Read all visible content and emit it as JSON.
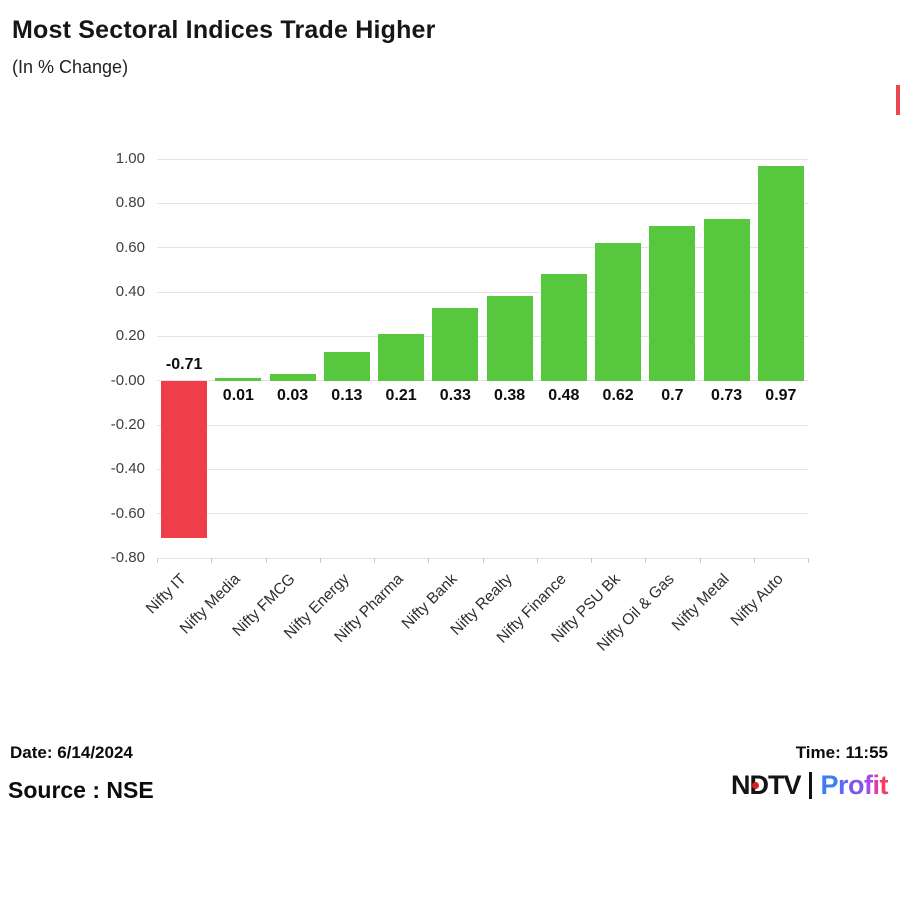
{
  "header": {
    "title": "Most Sectoral Indices Trade Higher",
    "subtitle": "(In % Change)"
  },
  "chart_data": {
    "type": "bar",
    "title": "Most Sectoral Indices Trade Higher",
    "subtitle": "(In % Change)",
    "categories": [
      "Nifty IT",
      "Nifty Media",
      "Nifty FMCG",
      "Nifty Energy",
      "Nifty Pharma",
      "Nifty Bank",
      "Nifty Realty",
      "Nifty Finance",
      "Nifty PSU Bk",
      "Nifty Oil & Gas",
      "Nifty Metal",
      "Nifty Auto"
    ],
    "values": [
      -0.71,
      0.01,
      0.03,
      0.13,
      0.21,
      0.33,
      0.38,
      0.48,
      0.62,
      0.7,
      0.73,
      0.97
    ],
    "value_labels": [
      "-0.71",
      "0.01",
      "0.03",
      "0.13",
      "0.21",
      "0.33",
      "0.38",
      "0.48",
      "0.62",
      "0.7",
      "0.73",
      "0.97"
    ],
    "xlabel": "",
    "ylabel": "",
    "ylim": [
      -0.8,
      1.0
    ],
    "y_tick_labels": [
      "1.00",
      "0.80",
      "0.60",
      "0.40",
      "0.20",
      "-0.00",
      "-0.20",
      "-0.40",
      "-0.60",
      "-0.80"
    ],
    "y_tick_values": [
      1.0,
      0.8,
      0.6,
      0.4,
      0.2,
      0.0,
      -0.2,
      -0.4,
      -0.6,
      -0.8
    ],
    "grid": true,
    "legend": "none",
    "positive_color": "#57c83e",
    "negative_color": "#ee3e4a"
  },
  "footer": {
    "date_label": "Date: 6/14/2024",
    "time_label": "Time: 11:55",
    "source_label": "Source : NSE",
    "brand": {
      "ndtv": "NDTV",
      "profit": "Profit",
      "profit_letter_colors": [
        "#3f7df2",
        "#5b6bf4",
        "#7e57f2",
        "#a94ae8",
        "#e23ba8",
        "#f43f63"
      ],
      "ndtv_dot_color": "#d91f1f"
    }
  },
  "accents": {
    "edge_marker_color": "#e8474e"
  }
}
